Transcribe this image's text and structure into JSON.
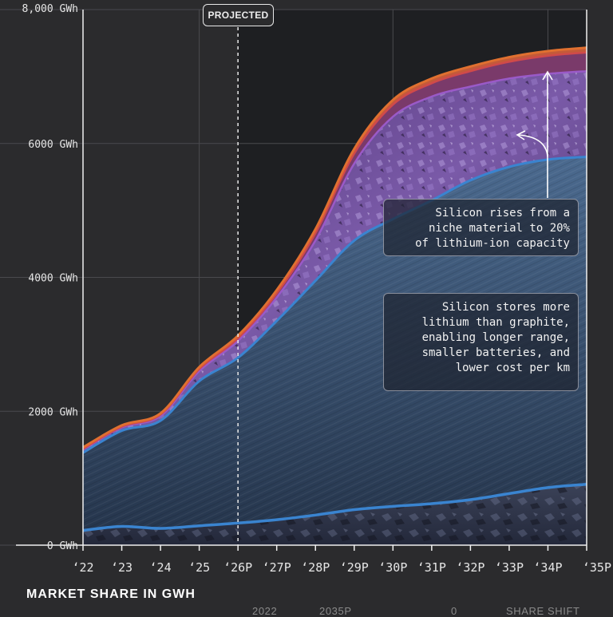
{
  "projected_label": "PROJECTED",
  "section_title": "MARKET SHARE IN GWH",
  "footer_partial": [
    "2022",
    "2035P",
    "0",
    "SHARE SHIFT"
  ],
  "callouts": {
    "silicon_rise": "Silicon rises from a\nniche material to 20%\nof lithium-ion capacity",
    "silicon_benefit": "Silicon stores more\nlithium than graphite,\nenabling longer range,\nsmaller batteries, and\nlower cost per km"
  },
  "colors": {
    "background": "#2b2b2d",
    "silicon": "#6b4a9c",
    "graphite": "#3f5a7a",
    "other": "#3a3f52",
    "total_line": "#e07030",
    "red_line": "#d04a4a",
    "purple_line": "#9a5ac8",
    "blue_line": "#3a84d0"
  },
  "chart_data": {
    "type": "area",
    "x": [
      "‘22",
      "‘23",
      "‘24",
      "‘25",
      "‘26P",
      "‘27P",
      "‘28P",
      "‘29P",
      "‘30P",
      "‘31P",
      "‘32P",
      "‘33P",
      "‘34P",
      "‘35P"
    ],
    "ylim": [
      0,
      8000
    ],
    "y_ticks": [
      "0 GWh",
      "2000 GWh",
      "4000 GWh",
      "6000 GWh",
      "8,000 GWh"
    ],
    "y_tick_values": [
      0,
      2000,
      4000,
      6000,
      8000
    ],
    "projected_from": "‘26P",
    "grid": true,
    "series": [
      {
        "values": [
          220,
          280,
          250,
          290,
          330,
          380,
          450,
          530,
          580,
          620,
          680,
          770,
          860,
          910
        ]
      },
      {
        "values": [
          1380,
          1710,
          1860,
          2450,
          2800,
          3350,
          3950,
          4550,
          4870,
          5150,
          5450,
          5650,
          5760,
          5800
        ]
      },
      {
        "values": [
          1430,
          1760,
          1930,
          2600,
          3050,
          3700,
          4550,
          5700,
          6400,
          6700,
          6850,
          6970,
          7040,
          7080
        ]
      },
      {
        "values": [
          1440,
          1770,
          1950,
          2630,
          3090,
          3760,
          4660,
          5850,
          6580,
          6900,
          7080,
          7220,
          7310,
          7360
        ]
      },
      {
        "values": [
          1460,
          1790,
          1970,
          2660,
          3130,
          3810,
          4720,
          5920,
          6650,
          6970,
          7150,
          7290,
          7380,
          7430
        ]
      }
    ]
  }
}
